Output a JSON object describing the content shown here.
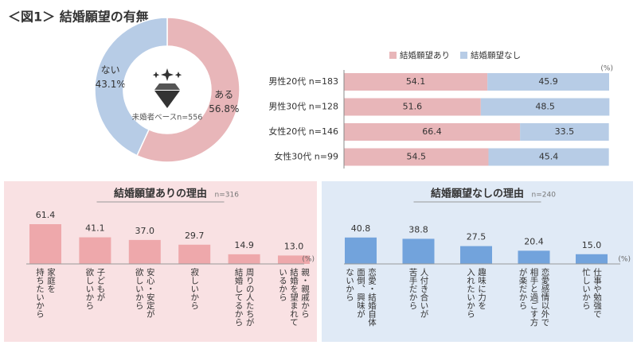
{
  "title": "＜図1＞ 結婚願望の有無",
  "chart_data": [
    {
      "type": "pie",
      "categories": [
        "ある",
        "ない"
      ],
      "values": [
        56.8,
        43.1
      ],
      "value_labels": [
        "56.8%",
        "43.1%"
      ],
      "colors": [
        "#e8b6b9",
        "#b7cce6"
      ],
      "note": "未婚者ベースn=556"
    },
    {
      "type": "hbar",
      "stacked": true,
      "categories": [
        "男性20代 n=183",
        "男性30代 n=128",
        "女性20代 n=146",
        "女性30代 n=99"
      ],
      "series": [
        {
          "name": "結婚願望あり",
          "color": "#e8b6b9",
          "values": [
            54.1,
            51.6,
            66.4,
            54.5
          ]
        },
        {
          "name": "結婚願望なし",
          "color": "#b7cce6",
          "values": [
            45.9,
            48.5,
            33.5,
            45.4
          ]
        }
      ],
      "xlim": [
        0,
        100
      ],
      "unit_label": "(%)"
    },
    {
      "type": "bar",
      "title": "結婚願望ありの理由",
      "subtitle": "n=316",
      "categories": [
        "家庭を\n持ちたいから",
        "子どもが\n欲しいから",
        "安心・安定が\n欲しいから",
        "寂しいから",
        "周りの人たちが\n結婚してるから",
        "親・親戚から\n結婚を望まれて\nいるから"
      ],
      "values": [
        61.4,
        41.1,
        37.0,
        29.7,
        14.9,
        13.0
      ],
      "value_labels": [
        "61.4",
        "41.1",
        "37.0",
        "29.7",
        "14.9",
        "13.0"
      ],
      "color": "#eea8ab",
      "ylim": [
        0,
        70
      ],
      "unit_label": "(%)"
    },
    {
      "type": "bar",
      "title": "結婚願望なしの理由",
      "subtitle": "n=240",
      "categories": [
        "恋愛・結婚自体\n面倒、興味が\nないから",
        "人付き合いが\n苦手だから",
        "趣味に力を\n入れたいから",
        "恋愛感情以外で\n相手と過ごす方\nが楽だから",
        "仕事や勉強で\n忙しいから"
      ],
      "values": [
        40.8,
        38.8,
        27.5,
        20.4,
        15.0
      ],
      "value_labels": [
        "40.8",
        "38.8",
        "27.5",
        "20.4",
        "15.0"
      ],
      "color": "#72a3dc",
      "ylim": [
        0,
        70
      ],
      "unit_label": "(%)"
    }
  ]
}
